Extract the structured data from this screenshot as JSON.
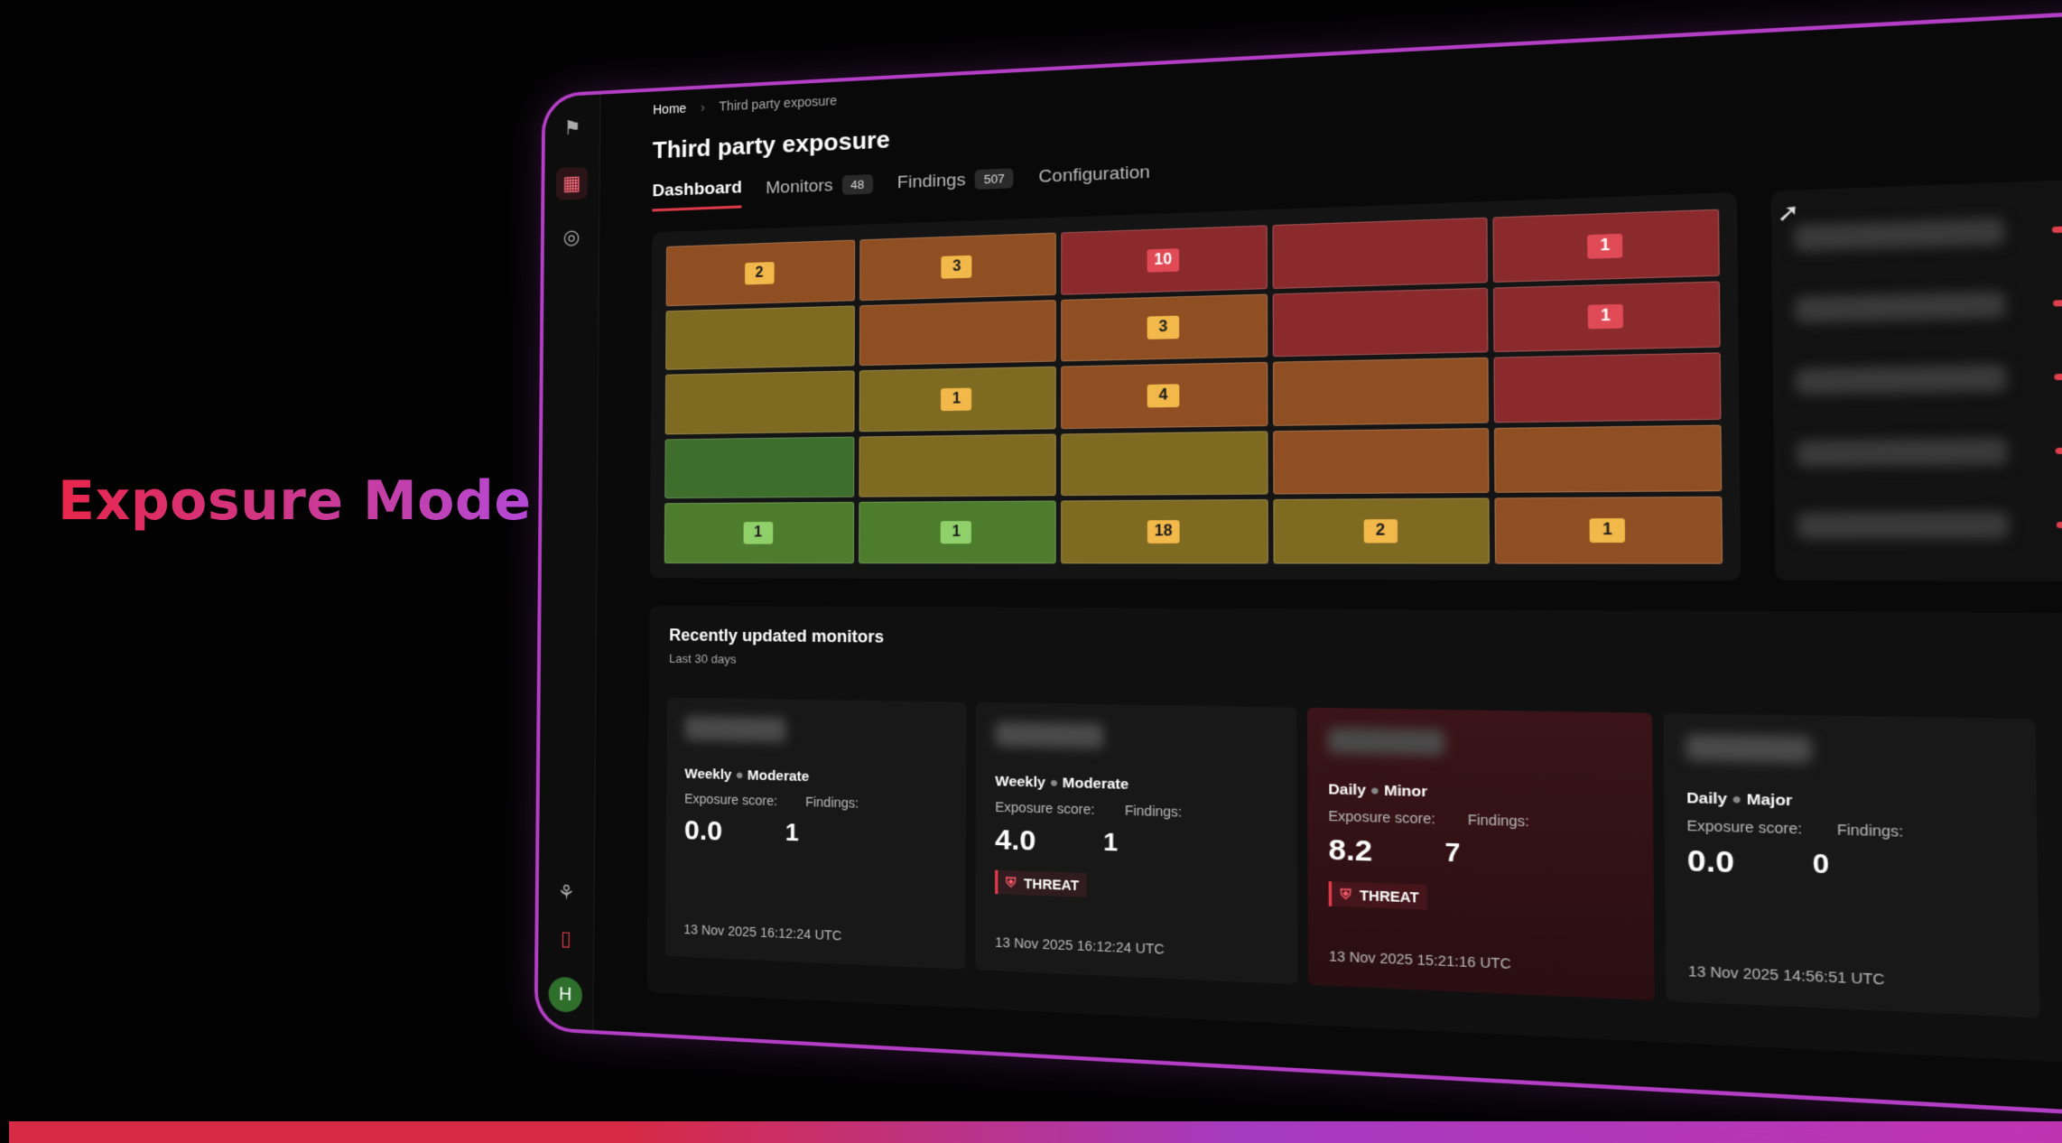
{
  "hero": {
    "title": "Exposure Mode"
  },
  "breadcrumb": {
    "home": "Home",
    "separator": "›",
    "current": "Third party exposure"
  },
  "page": {
    "title": "Third party exposure"
  },
  "tabs": [
    {
      "label": "Dashboard",
      "count": ""
    },
    {
      "label": "Monitors",
      "count": "48"
    },
    {
      "label": "Findings",
      "count": "507"
    },
    {
      "label": "Configuration",
      "count": ""
    }
  ],
  "rail": {
    "avatar_letter": "H",
    "icons": [
      "logo-icon",
      "building-icon",
      "radar-icon",
      "nodes-icon",
      "traffic-light-icon"
    ]
  },
  "heatmap": {
    "rows": [
      [
        {
          "v": "2",
          "c": "#8f4f22"
        },
        {
          "v": "3",
          "c": "#8f4f22"
        },
        {
          "v": "10",
          "c": "#8a2a2c"
        },
        {
          "v": "",
          "c": "#8a2a2c"
        },
        {
          "v": "1",
          "c": "#8a2a2c"
        }
      ],
      [
        {
          "v": "",
          "c": "#7f6a22"
        },
        {
          "v": "",
          "c": "#8f4f22"
        },
        {
          "v": "3",
          "c": "#8f4f22"
        },
        {
          "v": "",
          "c": "#8a2a2c"
        },
        {
          "v": "1",
          "c": "#8a2a2c"
        }
      ],
      [
        {
          "v": "",
          "c": "#7f6a22"
        },
        {
          "v": "1",
          "c": "#7f6a22"
        },
        {
          "v": "4",
          "c": "#8f4f22"
        },
        {
          "v": "",
          "c": "#8f4f22"
        },
        {
          "v": "",
          "c": "#8a2a2c"
        }
      ],
      [
        {
          "v": "",
          "c": "#3d6e2c"
        },
        {
          "v": "",
          "c": "#7f6a22"
        },
        {
          "v": "",
          "c": "#7f6a22"
        },
        {
          "v": "",
          "c": "#8f4f22"
        },
        {
          "v": "",
          "c": "#8f4f22"
        }
      ],
      [
        {
          "v": "1",
          "c": "#4d7d2c"
        },
        {
          "v": "1",
          "c": "#4d7d2c"
        },
        {
          "v": "18",
          "c": "#7f6a22"
        },
        {
          "v": "2",
          "c": "#7f6a22"
        },
        {
          "v": "1",
          "c": "#8f4f22"
        }
      ]
    ]
  },
  "side": {
    "rows": 5
  },
  "monitors": {
    "title": "Recently updated monitors",
    "subtitle": "Last 30 days",
    "score_label": "Exposure score:",
    "findings_label": "Findings:",
    "threat_label": "THREAT",
    "cards": [
      {
        "frequency": "Weekly",
        "severity": "Moderate",
        "score": "0.0",
        "findings": "1",
        "threat": false,
        "timestamp": "13 Nov 2025 16:12:24 UTC"
      },
      {
        "frequency": "Weekly",
        "severity": "Moderate",
        "score": "4.0",
        "findings": "1",
        "threat": true,
        "timestamp": "13 Nov 2025 16:12:24 UTC"
      },
      {
        "frequency": "Daily",
        "severity": "Minor",
        "score": "8.2",
        "findings": "7",
        "threat": true,
        "timestamp": "13 Nov 2025 15:21:16 UTC"
      },
      {
        "frequency": "Daily",
        "severity": "Major",
        "score": "0.0",
        "findings": "0",
        "threat": false,
        "timestamp": "13 Nov 2025 14:56:51 UTC"
      }
    ]
  },
  "colors": {
    "accent": "#e03a4a",
    "frame": "#b43fc6"
  }
}
